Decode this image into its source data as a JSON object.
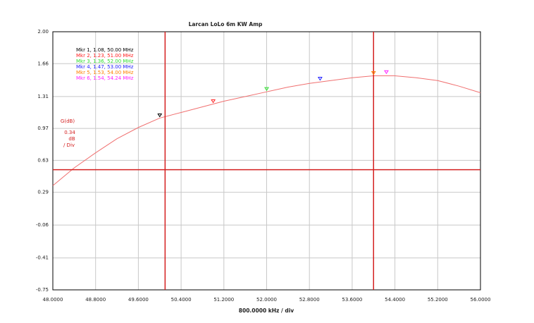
{
  "chart_data": {
    "type": "line",
    "title": "Larcan LoLo 6m KW Amp",
    "x_label": "800.0000 kHz / div",
    "y_label": "G(dB)",
    "y_scale_text": [
      "0.34",
      "dB",
      "/ Div"
    ],
    "xlim": [
      48,
      56
    ],
    "ylim": [
      -0.75,
      2.0
    ],
    "xticks": [
      {
        "value": 48,
        "label": "48.0000"
      },
      {
        "value": 48.8,
        "label": "48.8000"
      },
      {
        "value": 49.6,
        "label": "49.6000"
      },
      {
        "value": 50.4,
        "label": "50.4000"
      },
      {
        "value": 51.2,
        "label": "51.2000"
      },
      {
        "value": 52,
        "label": "52.0000"
      },
      {
        "value": 52.8,
        "label": "52.8000"
      },
      {
        "value": 53.6,
        "label": "53.6000"
      },
      {
        "value": 54.4,
        "label": "54.4000"
      },
      {
        "value": 55.2,
        "label": "55.2000"
      },
      {
        "value": 56,
        "label": "56.0000"
      }
    ],
    "yticks": [
      {
        "value": 2.0,
        "label": "2.00"
      },
      {
        "value": 1.66,
        "label": "1.66"
      },
      {
        "value": 1.31,
        "label": "1.31"
      },
      {
        "value": 0.97,
        "label": "0.97"
      },
      {
        "value": 0.63,
        "label": "0.63"
      },
      {
        "value": 0.29,
        "label": "0.29"
      },
      {
        "value": -0.06,
        "label": "-0.06"
      },
      {
        "value": -0.41,
        "label": "-0.41"
      },
      {
        "value": -0.75,
        "label": "-0.75"
      }
    ],
    "grid": true,
    "x": [
      48.0,
      48.4,
      48.8,
      49.2,
      49.6,
      50.0,
      50.4,
      50.8,
      51.2,
      51.6,
      52.0,
      52.4,
      52.8,
      53.2,
      53.6,
      54.0,
      54.4,
      54.8,
      55.2,
      55.6,
      56.0
    ],
    "series": [
      {
        "color": "#f07070",
        "values": [
          0.36,
          0.55,
          0.71,
          0.86,
          0.98,
          1.08,
          1.14,
          1.2,
          1.26,
          1.31,
          1.36,
          1.41,
          1.45,
          1.48,
          1.51,
          1.53,
          1.53,
          1.51,
          1.48,
          1.42,
          1.35
        ]
      }
    ],
    "markers": [
      {
        "label": "Mkr 1, 1.08, 50.00 MHz",
        "x": 50.0,
        "y": 1.08,
        "color": "#000000"
      },
      {
        "label": "Mkr 2, 1.23, 51.00 MHz",
        "x": 51.0,
        "y": 1.23,
        "color": "#ff2020"
      },
      {
        "label": "Mkr 3, 1.36, 52.00 MHz",
        "x": 52.0,
        "y": 1.36,
        "color": "#30e030"
      },
      {
        "label": "Mkr 4, 1.47, 53.00 MHz",
        "x": 53.0,
        "y": 1.47,
        "color": "#2020ff"
      },
      {
        "label": "Mkr 5, 1.53, 54.00 MHz",
        "x": 54.0,
        "y": 1.53,
        "color": "#ff8000"
      },
      {
        "label": "Mkr 6, 1.54, 54.24 MHz",
        "x": 54.24,
        "y": 1.54,
        "color": "#ff20ff"
      }
    ],
    "limit_lines": {
      "color": "#d42020",
      "x": [
        50.1,
        54.0
      ],
      "y": [
        0.53
      ]
    }
  }
}
